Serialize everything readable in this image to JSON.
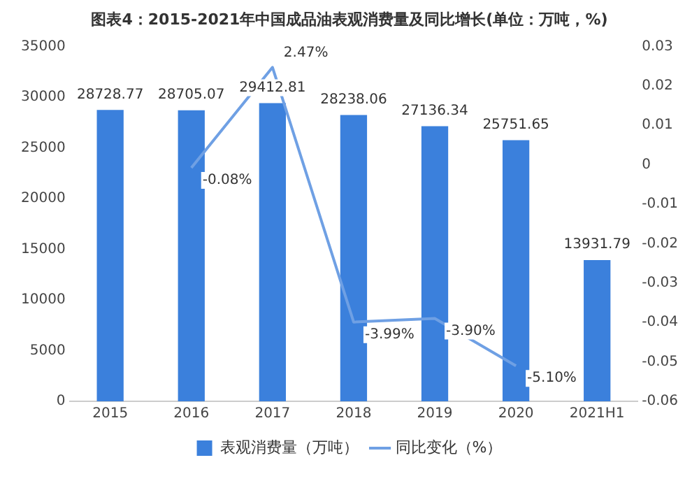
{
  "chart_data": {
    "type": "bar",
    "title": "图表4：2015-2021年中国成品油表观消费量及同比增长(单位：万吨，%)",
    "categories": [
      "2015",
      "2016",
      "2017",
      "2018",
      "2019",
      "2020",
      "2021H1"
    ],
    "series": [
      {
        "name": "表观消费量（万吨）",
        "color": "#3b80dc",
        "values": [
          28728.77,
          28705.07,
          29412.81,
          28238.06,
          27136.34,
          25751.65,
          13931.79
        ],
        "value_labels": [
          "28728.77",
          "28705.07",
          "29412.81",
          "28238.06",
          "27136.34",
          "25751.65",
          "13931.79"
        ]
      },
      {
        "name": "同比变化（%）",
        "type": "line",
        "axis": "y2",
        "color": "#6fa0e4",
        "values": [
          null,
          -0.0008,
          0.0247,
          -0.0399,
          -0.039,
          -0.051,
          null
        ],
        "value_labels": [
          null,
          "-0.08%",
          "2.47%",
          "-3.99%",
          "-3.90%",
          "-5.10%",
          null
        ]
      }
    ],
    "ylim": [
      0,
      35000
    ],
    "yticks": [
      0,
      5000,
      10000,
      15000,
      20000,
      25000,
      30000,
      35000
    ],
    "y2lim": [
      -0.06,
      0.03
    ],
    "y2ticks": [
      -0.06,
      -0.05,
      -0.04,
      -0.03,
      -0.02,
      -0.01,
      0,
      0.01,
      0.02,
      0.03
    ],
    "grid": false,
    "legend": "bottom",
    "marker": "none",
    "line_style": "solid"
  }
}
